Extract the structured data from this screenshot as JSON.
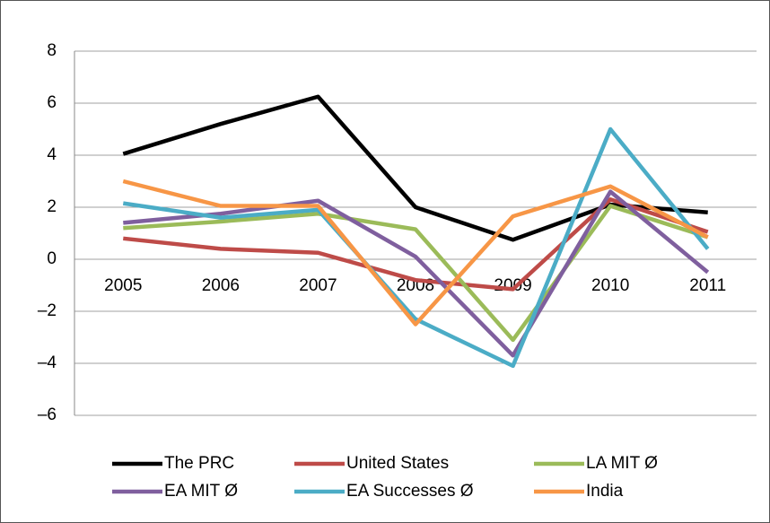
{
  "chart_data": {
    "type": "line",
    "categories": [
      "2005",
      "2006",
      "2007",
      "2008",
      "2009",
      "2010",
      "2011"
    ],
    "series": [
      {
        "name": "The PRC",
        "color": "#000000",
        "values": [
          4.05,
          5.2,
          6.25,
          2.0,
          0.75,
          2.1,
          1.8
        ]
      },
      {
        "name": "United States",
        "color": "#be4b48",
        "values": [
          0.8,
          0.4,
          0.25,
          -0.8,
          -1.15,
          2.3,
          1.05
        ]
      },
      {
        "name": "LA MIT Ø",
        "color": "#9bbb59",
        "values": [
          1.2,
          1.45,
          1.75,
          1.15,
          -3.1,
          2.05,
          0.85
        ]
      },
      {
        "name": "EA MIT Ø",
        "color": "#7f5f9e",
        "values": [
          1.4,
          1.75,
          2.25,
          0.1,
          -3.7,
          2.6,
          -0.5
        ]
      },
      {
        "name": "EA Successes Ø",
        "color": "#4bacc6",
        "values": [
          2.15,
          1.6,
          1.9,
          -2.3,
          -4.1,
          5.0,
          0.4
        ]
      },
      {
        "name": "India",
        "color": "#f79646",
        "values": [
          3.0,
          2.05,
          2.05,
          -2.5,
          1.65,
          2.8,
          0.85
        ]
      }
    ],
    "ylim": [
      -6,
      8
    ],
    "yticks": [
      {
        "value": -6,
        "label": "–6"
      },
      {
        "value": -4,
        "label": "–4"
      },
      {
        "value": -2,
        "label": "–2"
      },
      0,
      2,
      4,
      6,
      8
    ],
    "grid": true
  }
}
